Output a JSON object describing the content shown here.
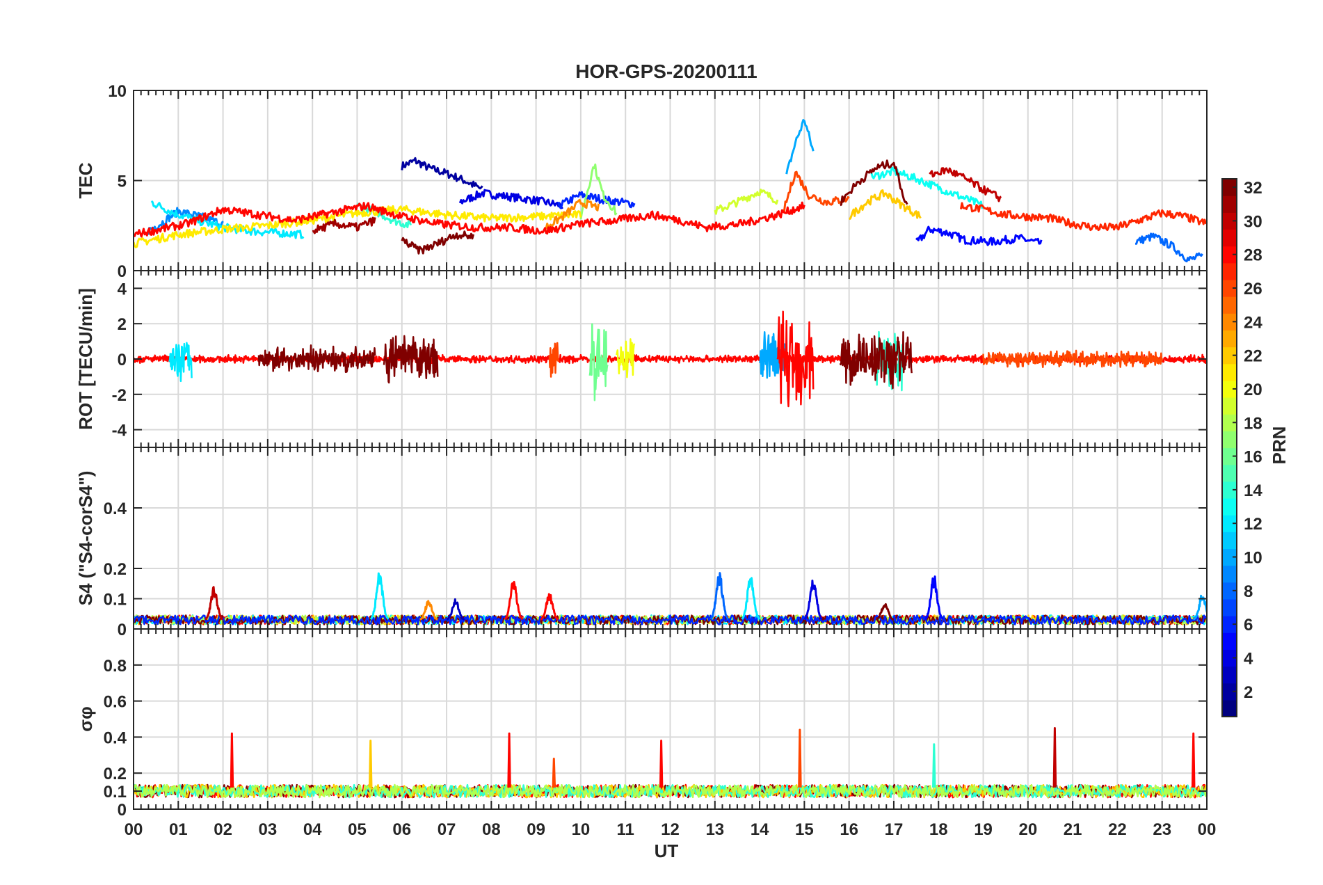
{
  "figure": {
    "title": "HOR-GPS-20200111",
    "xlabel": "UT",
    "x_ticks": [
      "00",
      "01",
      "02",
      "03",
      "04",
      "05",
      "06",
      "07",
      "08",
      "09",
      "10",
      "11",
      "12",
      "13",
      "14",
      "15",
      "16",
      "17",
      "18",
      "19",
      "20",
      "21",
      "22",
      "23",
      "00"
    ],
    "colorbar": {
      "label": "PRN",
      "range": [
        1,
        32
      ],
      "ticks": [
        "2",
        "4",
        "6",
        "8",
        "10",
        "12",
        "14",
        "16",
        "18",
        "20",
        "22",
        "24",
        "26",
        "28",
        "30",
        "32"
      ],
      "colormap": "jet"
    }
  },
  "chart_data": [
    {
      "type": "line",
      "id": "tec",
      "ylabel": "TEC",
      "ylim": [
        0,
        10
      ],
      "y_ticks": [
        "0",
        "5",
        "10"
      ],
      "xlim": [
        0,
        24
      ],
      "grid": true,
      "series": [
        {
          "prn": 2,
          "x": [
            6.0,
            6.3,
            6.6,
            7.0,
            7.4,
            7.8
          ],
          "y": [
            5.8,
            6.1,
            5.7,
            5.4,
            5.0,
            4.5
          ]
        },
        {
          "prn": 4,
          "x": [
            7.3,
            7.8,
            8.4,
            9.0,
            9.6
          ],
          "y": [
            3.8,
            4.3,
            4.1,
            3.9,
            3.6
          ]
        },
        {
          "prn": 5,
          "x": [
            17.5,
            17.8,
            18.2,
            18.6,
            19.2,
            19.8,
            20.3
          ],
          "y": [
            1.5,
            2.3,
            2.1,
            1.7,
            1.6,
            1.8,
            1.5
          ]
        },
        {
          "prn": 6,
          "x": [
            9.5,
            10.0,
            10.6,
            11.2
          ],
          "y": [
            3.6,
            4.2,
            3.9,
            3.7
          ]
        },
        {
          "prn": 8,
          "x": [
            22.4,
            22.8,
            23.2,
            23.6,
            23.9
          ],
          "y": [
            1.6,
            1.9,
            1.4,
            0.6,
            0.8
          ]
        },
        {
          "prn": 9,
          "x": [
            0.3,
            0.6,
            1.0,
            1.5,
            2.0
          ],
          "y": [
            2.2,
            2.6,
            3.3,
            3.0,
            2.6
          ]
        },
        {
          "prn": 10,
          "x": [
            14.6,
            14.8,
            15.0,
            15.2
          ],
          "y": [
            5.3,
            7.1,
            8.4,
            6.6
          ]
        },
        {
          "prn": 12,
          "x": [
            0.4,
            0.9,
            1.4,
            2.0,
            2.6,
            3.2,
            3.8
          ],
          "y": [
            3.8,
            3.2,
            2.8,
            2.4,
            2.2,
            2.1,
            2.0
          ]
        },
        {
          "prn": 13,
          "x": [
            16.5,
            17.0,
            17.5,
            18.0,
            18.5,
            19.0
          ],
          "y": [
            5.2,
            5.5,
            5.1,
            4.6,
            4.1,
            3.6
          ]
        },
        {
          "prn": 14,
          "x": [
            5.0,
            5.4,
            5.8,
            6.2
          ],
          "y": [
            3.6,
            3.3,
            2.8,
            2.5
          ]
        },
        {
          "prn": 17,
          "x": [
            10.0,
            10.3,
            10.5,
            10.8
          ],
          "y": [
            3.0,
            5.9,
            4.2,
            3.2
          ]
        },
        {
          "prn": 19,
          "x": [
            13.0,
            13.5,
            14.0,
            14.4
          ],
          "y": [
            3.3,
            3.8,
            4.4,
            3.9
          ]
        },
        {
          "prn": 21,
          "x": [
            0.0,
            1.0,
            2.0,
            3.0,
            4.0,
            5.0,
            6.0,
            7.0,
            8.0,
            9.0,
            10.0
          ],
          "y": [
            1.5,
            2.0,
            2.3,
            2.5,
            2.8,
            3.2,
            3.4,
            3.1,
            2.9,
            3.0,
            3.1
          ]
        },
        {
          "prn": 22,
          "x": [
            16.0,
            16.4,
            16.8,
            17.2,
            17.6
          ],
          "y": [
            3.0,
            3.8,
            4.3,
            3.6,
            3.0
          ]
        },
        {
          "prn": 24,
          "x": [
            9.2,
            9.6,
            10.0,
            10.4
          ],
          "y": [
            2.4,
            3.0,
            3.8,
            3.5
          ]
        },
        {
          "prn": 26,
          "x": [
            14.5,
            14.8,
            15.1,
            15.5,
            16.0
          ],
          "y": [
            3.0,
            5.5,
            4.2,
            3.8,
            4.0
          ]
        },
        {
          "prn": 27,
          "x": [
            18.5,
            19.0,
            19.5,
            20.0,
            20.5,
            21.0,
            21.5,
            22.0,
            22.5,
            23.0,
            23.5,
            24.0
          ],
          "y": [
            3.6,
            3.4,
            3.1,
            3.0,
            2.9,
            2.6,
            2.4,
            2.4,
            2.8,
            3.2,
            3.0,
            2.6
          ]
        },
        {
          "prn": 28,
          "x": [
            0.0,
            0.6,
            1.2,
            2.0,
            2.8,
            3.6,
            4.4,
            5.2,
            6.0,
            6.8,
            7.6,
            8.4,
            9.2,
            10.0,
            10.8,
            11.6,
            12.2,
            12.8,
            13.6,
            14.4,
            15.0
          ],
          "y": [
            2.0,
            2.3,
            2.6,
            3.4,
            3.1,
            2.8,
            3.2,
            3.6,
            3.0,
            2.6,
            2.4,
            2.4,
            2.2,
            2.6,
            2.8,
            3.1,
            2.8,
            2.4,
            2.6,
            3.1,
            3.6
          ]
        },
        {
          "prn": 30,
          "x": [
            17.8,
            18.2,
            18.6,
            19.0,
            19.4
          ],
          "y": [
            5.3,
            5.6,
            5.1,
            4.5,
            4.0
          ]
        },
        {
          "prn": 31,
          "x": [
            4.0,
            4.5,
            5.0,
            5.4
          ],
          "y": [
            2.2,
            2.6,
            2.4,
            2.8
          ]
        },
        {
          "prn": 32,
          "x": [
            6.0,
            6.4,
            6.8,
            7.2,
            7.6
          ],
          "y": [
            1.7,
            1.1,
            1.5,
            2.0,
            1.9
          ]
        },
        {
          "prn": 32,
          "x": [
            15.8,
            16.2,
            16.6,
            17.0,
            17.3
          ],
          "y": [
            3.8,
            4.9,
            5.7,
            6.0,
            3.5
          ]
        }
      ]
    },
    {
      "type": "line",
      "id": "rot",
      "ylabel": "ROT [TECU/min]",
      "ylim": [
        -5,
        5
      ],
      "y_ticks": [
        "-4",
        "-2",
        "0",
        "2",
        "4"
      ],
      "xlim": [
        0,
        24
      ],
      "grid": true,
      "bursts": [
        {
          "prn": 28,
          "x_range": [
            0.0,
            24.0
          ],
          "amp": 0.25
        },
        {
          "prn": 12,
          "x_range": [
            0.8,
            1.3
          ],
          "amp": 1.3
        },
        {
          "prn": 32,
          "x_range": [
            2.8,
            5.4
          ],
          "amp": 0.8
        },
        {
          "prn": 32,
          "x_range": [
            5.6,
            6.8
          ],
          "amp": 1.5
        },
        {
          "prn": 26,
          "x_range": [
            9.3,
            9.5
          ],
          "amp": 1.2
        },
        {
          "prn": 16,
          "x_range": [
            10.2,
            10.6
          ],
          "amp": 2.8
        },
        {
          "prn": 20,
          "x_range": [
            10.8,
            11.2
          ],
          "amp": 1.3
        },
        {
          "prn": 10,
          "x_range": [
            14.0,
            14.6
          ],
          "amp": 1.9
        },
        {
          "prn": 28,
          "x_range": [
            14.4,
            15.2
          ],
          "amp": 3.3
        },
        {
          "prn": 14,
          "x_range": [
            16.6,
            17.2
          ],
          "amp": 2.0
        },
        {
          "prn": 32,
          "x_range": [
            15.8,
            17.4
          ],
          "amp": 1.9
        },
        {
          "prn": 26,
          "x_range": [
            19.0,
            23.0
          ],
          "amp": 0.5
        }
      ]
    },
    {
      "type": "line",
      "id": "s4",
      "ylabel": "S4 (\"S4-corS4\")",
      "ylim": [
        0,
        0.6
      ],
      "y_ticks": [
        "0",
        "0.1",
        "0.2",
        "0.4"
      ],
      "xlim": [
        0,
        24
      ],
      "grid": true,
      "peaks": [
        {
          "prn": 30,
          "x": 1.8,
          "y": 0.14
        },
        {
          "prn": 12,
          "x": 5.5,
          "y": 0.19
        },
        {
          "prn": 24,
          "x": 6.6,
          "y": 0.1
        },
        {
          "prn": 3,
          "x": 7.2,
          "y": 0.1
        },
        {
          "prn": 28,
          "x": 8.5,
          "y": 0.17
        },
        {
          "prn": 28,
          "x": 9.3,
          "y": 0.12
        },
        {
          "prn": 8,
          "x": 13.1,
          "y": 0.19
        },
        {
          "prn": 12,
          "x": 13.8,
          "y": 0.19
        },
        {
          "prn": 4,
          "x": 15.2,
          "y": 0.17
        },
        {
          "prn": 32,
          "x": 16.8,
          "y": 0.09
        },
        {
          "prn": 5,
          "x": 17.9,
          "y": 0.18
        },
        {
          "prn": 10,
          "x": 23.9,
          "y": 0.12
        }
      ]
    },
    {
      "type": "line",
      "id": "sigma_phi",
      "ylabel": "σφ",
      "ylim": [
        0,
        1.0
      ],
      "y_ticks": [
        "0",
        "0.1",
        "0.2",
        "0.4",
        "0.6",
        "0.8"
      ],
      "xlim": [
        0,
        24
      ],
      "grid": true,
      "spikes": [
        {
          "prn": 28,
          "x": 2.2,
          "y": 0.42
        },
        {
          "prn": 22,
          "x": 5.3,
          "y": 0.38
        },
        {
          "prn": 28,
          "x": 8.4,
          "y": 0.42
        },
        {
          "prn": 26,
          "x": 9.4,
          "y": 0.28
        },
        {
          "prn": 28,
          "x": 11.8,
          "y": 0.38
        },
        {
          "prn": 26,
          "x": 14.9,
          "y": 0.44
        },
        {
          "prn": 14,
          "x": 17.9,
          "y": 0.36
        },
        {
          "prn": 30,
          "x": 20.6,
          "y": 0.45
        },
        {
          "prn": 28,
          "x": 23.7,
          "y": 0.42
        }
      ]
    }
  ]
}
